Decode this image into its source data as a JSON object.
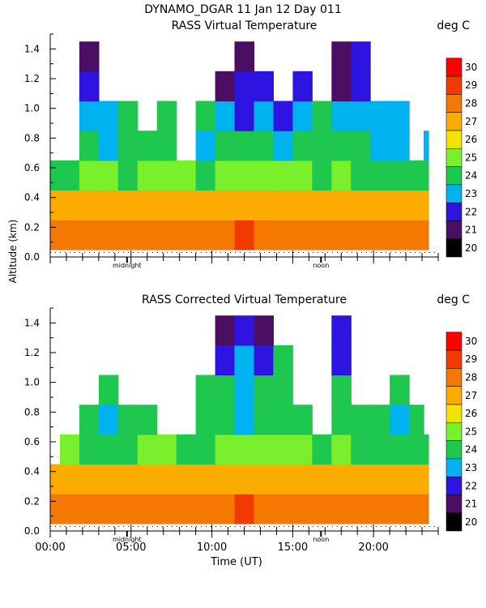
{
  "header": {
    "title": "DYNAMO_DGAR  11 Jan 12 Day 011"
  },
  "shared": {
    "ylabel": "Altitude (km)",
    "xlabel": "Time (UT)",
    "xticklabels": [
      "00:00",
      "05:00",
      "10:00",
      "15:00",
      "20:00"
    ],
    "yticklabels": [
      "0.0",
      "0.2",
      "0.4",
      "0.6",
      "0.8",
      "1.0",
      "1.2",
      "1.4"
    ],
    "markers": {
      "midnight": "midnight",
      "noon": "noon"
    },
    "colorbar_unit": "deg C",
    "colorbar_labels": [
      "20",
      "21",
      "22",
      "23",
      "24",
      "25",
      "26",
      "27",
      "28",
      "29",
      "30"
    ],
    "colors": [
      "#000000",
      "#4a0f63",
      "#2d14e0",
      "#00b2f0",
      "#1ec84e",
      "#7af02d",
      "#f4e300",
      "#fcab00",
      "#f57800",
      "#f23a00",
      "#ff0000"
    ]
  },
  "chart_data": [
    {
      "type": "heatmap",
      "title": "RASS Virtual Temperature",
      "xlim": [
        0,
        24
      ],
      "ylim": [
        0,
        1.5
      ],
      "x": [
        0.0,
        1.2,
        2.4,
        3.6,
        4.8,
        6.0,
        7.2,
        8.4,
        9.6,
        10.8,
        12.0,
        13.2,
        14.4,
        15.6,
        16.8,
        18.0,
        19.2,
        20.4,
        21.6,
        22.8,
        23.4
      ],
      "y": [
        0.15,
        0.35,
        0.55,
        0.75,
        0.95,
        1.15,
        1.35
      ],
      "z": [
        [
          28,
          28,
          28,
          28,
          28,
          28,
          28,
          28,
          28,
          28,
          29,
          28,
          28,
          28,
          28,
          28,
          28,
          28,
          28,
          28,
          28
        ],
        [
          27,
          27,
          27,
          27,
          27,
          27,
          27,
          27,
          27,
          27,
          27,
          27,
          27,
          27,
          27,
          27,
          27,
          27,
          27,
          27,
          27
        ],
        [
          24,
          24,
          25,
          25,
          24,
          25,
          25,
          25,
          24,
          25,
          25,
          25,
          25,
          25,
          24,
          25,
          24,
          24,
          24,
          24,
          24
        ],
        [
          null,
          null,
          24,
          23,
          24,
          24,
          24,
          null,
          23,
          24,
          24,
          24,
          23,
          24,
          24,
          24,
          24,
          23,
          23,
          null,
          23
        ],
        [
          null,
          null,
          23,
          23,
          24,
          null,
          24,
          null,
          24,
          23,
          22,
          23,
          22,
          23,
          24,
          23,
          23,
          23,
          23,
          null,
          null
        ],
        [
          null,
          null,
          22,
          null,
          null,
          null,
          null,
          null,
          null,
          21,
          22,
          22,
          null,
          22,
          null,
          21,
          22,
          null,
          null,
          null,
          null
        ],
        [
          null,
          null,
          21,
          null,
          null,
          null,
          null,
          null,
          null,
          null,
          21,
          null,
          null,
          null,
          null,
          21,
          22,
          null,
          null,
          null,
          null
        ]
      ],
      "zlim": [
        20,
        30
      ]
    },
    {
      "type": "heatmap",
      "title": "RASS Corrected Virtual Temperature",
      "xlim": [
        0,
        24
      ],
      "ylim": [
        0,
        1.5
      ],
      "x": [
        0.0,
        1.2,
        2.4,
        3.6,
        4.8,
        6.0,
        7.2,
        8.4,
        9.6,
        10.8,
        12.0,
        13.2,
        14.4,
        15.6,
        16.8,
        18.0,
        19.2,
        20.4,
        21.6,
        22.8,
        23.4
      ],
      "y": [
        0.15,
        0.35,
        0.55,
        0.75,
        0.95,
        1.15,
        1.35
      ],
      "z": [
        [
          28,
          28,
          28,
          28,
          28,
          28,
          28,
          28,
          28,
          28,
          29,
          28,
          28,
          28,
          28,
          28,
          28,
          28,
          28,
          28,
          28
        ],
        [
          27,
          27,
          27,
          27,
          27,
          27,
          27,
          27,
          27,
          27,
          27,
          27,
          27,
          27,
          27,
          27,
          27,
          27,
          27,
          27,
          27
        ],
        [
          null,
          25,
          24,
          24,
          24,
          25,
          25,
          24,
          24,
          25,
          25,
          25,
          25,
          25,
          24,
          25,
          24,
          24,
          24,
          24,
          24
        ],
        [
          null,
          null,
          24,
          23,
          24,
          24,
          null,
          null,
          24,
          24,
          23,
          24,
          24,
          24,
          null,
          24,
          24,
          24,
          23,
          24,
          null
        ],
        [
          null,
          null,
          null,
          24,
          null,
          null,
          null,
          null,
          24,
          24,
          23,
          24,
          24,
          null,
          null,
          24,
          null,
          null,
          24,
          null,
          null
        ],
        [
          null,
          null,
          null,
          null,
          null,
          null,
          null,
          null,
          null,
          22,
          23,
          22,
          24,
          null,
          null,
          22,
          null,
          null,
          null,
          null,
          null
        ],
        [
          null,
          null,
          null,
          null,
          null,
          null,
          null,
          null,
          null,
          21,
          22,
          21,
          null,
          null,
          null,
          22,
          null,
          null,
          null,
          null,
          null
        ]
      ],
      "zlim": [
        20,
        30
      ]
    }
  ]
}
